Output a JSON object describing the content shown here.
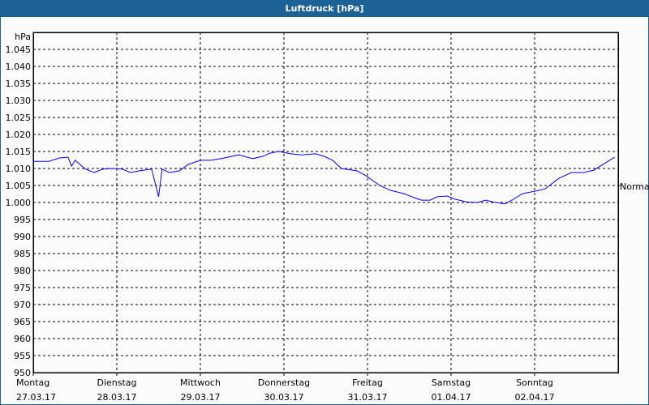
{
  "window": {
    "title": "Luftdruck [hPa]",
    "titlebar_color": "#1d6296"
  },
  "chart_data": {
    "type": "line",
    "title": "Luftdruck [hPa]",
    "ylabel": "hPa",
    "xlabel": "",
    "ylim": [
      950,
      1050
    ],
    "yticks": [
      950,
      955,
      960,
      965,
      970,
      975,
      980,
      985,
      990,
      995,
      1000,
      1005,
      1010,
      1015,
      1020,
      1025,
      1030,
      1035,
      1040,
      1045
    ],
    "ytick_labels": [
      "950",
      "955",
      "960",
      "965",
      "970",
      "975",
      "980",
      "985",
      "990",
      "995",
      "1.000",
      "1.005",
      "1.010",
      "1.015",
      "1.020",
      "1.025",
      "1.030",
      "1.035",
      "1.040",
      "1.045"
    ],
    "xlim": [
      "27.03.17 00:00",
      "03.04.17 00:00"
    ],
    "categories": [
      {
        "day": "Montag",
        "date": "27.03.17"
      },
      {
        "day": "Dienstag",
        "date": "28.03.17"
      },
      {
        "day": "Mittwoch",
        "date": "29.03.17"
      },
      {
        "day": "Donnerstag",
        "date": "30.03.17"
      },
      {
        "day": "Freitag",
        "date": "31.03.17"
      },
      {
        "day": "Samstag",
        "date": "01.04.17"
      },
      {
        "day": "Sonntag",
        "date": "02.04.17"
      }
    ],
    "grid": true,
    "line_color": "#0000ff",
    "reference": {
      "label": "Normal",
      "value": 1005
    },
    "series": [
      {
        "points": [
          [
            "27.03.17 00:00",
            1012.1
          ],
          [
            "27.03.17 04:30",
            1012.1
          ],
          [
            "27.03.17 07:30",
            1013.1
          ],
          [
            "27.03.17 10:00",
            1013.3
          ],
          [
            "27.03.17 11:00",
            1010.7
          ],
          [
            "27.03.17 12:00",
            1012.4
          ],
          [
            "27.03.17 15:00",
            1009.8
          ],
          [
            "27.03.17 17:30",
            1008.8
          ],
          [
            "27.03.17 20:00",
            1009.8
          ],
          [
            "27.03.17 23:00",
            1010.0
          ],
          [
            "28.03.17 01:30",
            1009.8
          ],
          [
            "28.03.17 04:00",
            1008.8
          ],
          [
            "28.03.17 06:30",
            1009.3
          ],
          [
            "28.03.17 10:00",
            1009.8
          ],
          [
            "28.03.17 12:00",
            1001.7
          ],
          [
            "28.03.17 13:00",
            1009.8
          ],
          [
            "28.03.17 15:00",
            1008.8
          ],
          [
            "28.03.17 18:00",
            1009.3
          ],
          [
            "28.03.17 20:30",
            1011.2
          ],
          [
            "29.03.17 00:00",
            1012.4
          ],
          [
            "29.03.17 03:00",
            1012.4
          ],
          [
            "29.03.17 06:00",
            1012.9
          ],
          [
            "29.03.17 11:00",
            1014.0
          ],
          [
            "29.03.17 15:00",
            1012.9
          ],
          [
            "29.03.17 18:00",
            1013.6
          ],
          [
            "29.03.17 20:00",
            1014.5
          ],
          [
            "29.03.17 22:30",
            1015.0
          ],
          [
            "30.03.17 02:00",
            1014.3
          ],
          [
            "30.03.17 05:00",
            1014.0
          ],
          [
            "30.03.17 09:00",
            1014.3
          ],
          [
            "30.03.17 11:30",
            1013.6
          ],
          [
            "30.03.17 14:00",
            1012.4
          ],
          [
            "30.03.17 16:30",
            1010.0
          ],
          [
            "30.03.17 21:00",
            1009.3
          ],
          [
            "30.03.17 23:30",
            1007.9
          ],
          [
            "31.03.17 03:30",
            1005.0
          ],
          [
            "31.03.17 06:30",
            1003.6
          ],
          [
            "31.03.17 10:30",
            1002.6
          ],
          [
            "31.03.17 13:30",
            1001.4
          ],
          [
            "31.03.17 15:30",
            1000.7
          ],
          [
            "31.03.17 18:00",
            1000.7
          ],
          [
            "31.03.17 20:00",
            1001.7
          ],
          [
            "31.03.17 23:00",
            1001.9
          ],
          [
            "01.04.17 01:00",
            1001.0
          ],
          [
            "01.04.17 04:30",
            1000.2
          ],
          [
            "01.04.17 07:30",
            1000.0
          ],
          [
            "01.04.17 10:00",
            1000.7
          ],
          [
            "01.04.17 12:00",
            1000.2
          ],
          [
            "01.04.17 15:30",
            999.6
          ],
          [
            "01.04.17 17:30",
            1000.7
          ],
          [
            "01.04.17 20:30",
            1002.6
          ],
          [
            "02.04.17 00:00",
            1003.3
          ],
          [
            "02.04.17 03:00",
            1004.0
          ],
          [
            "02.04.17 07:00",
            1007.1
          ],
          [
            "02.04.17 10:30",
            1008.8
          ],
          [
            "02.04.17 14:00",
            1008.8
          ],
          [
            "02.04.17 17:00",
            1009.5
          ],
          [
            "02.04.17 20:00",
            1011.4
          ],
          [
            "02.04.17 23:00",
            1013.3
          ]
        ]
      }
    ]
  }
}
